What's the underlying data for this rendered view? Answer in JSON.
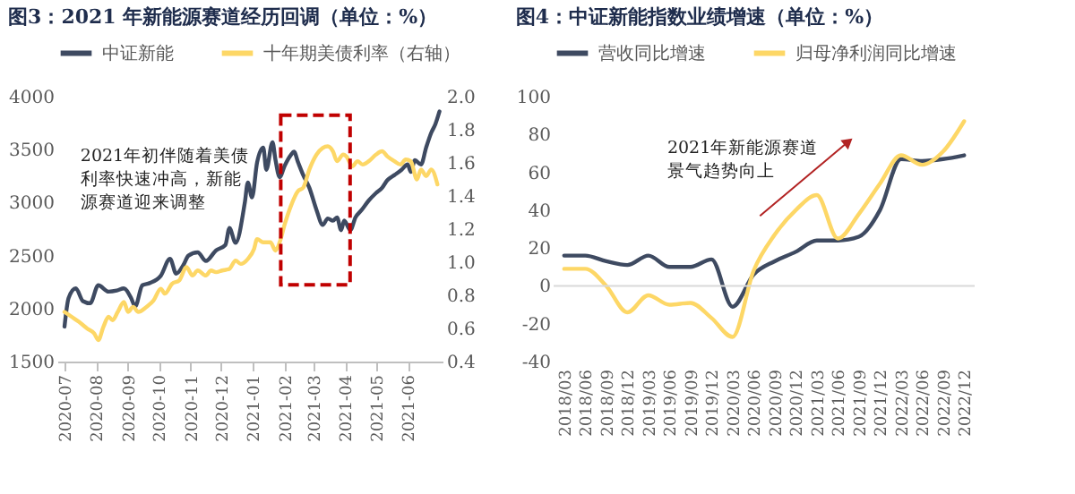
{
  "chart_data": [
    {
      "type": "line",
      "title": "图3：2021 年新能源赛道经历回调（单位：%）",
      "legend": "top",
      "xlim": [
        "2020-06-24",
        "2021-07-05"
      ],
      "xticks": [
        "2020-07",
        "2020-08",
        "2020-09",
        "2020-10",
        "2020-11",
        "2020-12",
        "2021-01",
        "2021-02",
        "2021-03",
        "2021-04",
        "2021-05",
        "2021-06"
      ],
      "ylim": [
        1500,
        4000
      ],
      "yticks": [
        1500,
        2000,
        2500,
        3000,
        3500,
        4000
      ],
      "y2lim": [
        0.4,
        2.0
      ],
      "y2ticks": [
        0.4,
        0.6,
        0.8,
        {
          "value": 1,
          "label": "1.0"
        },
        1.2,
        1.4,
        1.6,
        1.8,
        {
          "value": 2,
          "label": "2.0"
        }
      ],
      "annotations": [
        "2021年初伴随着美债利率快速冲高，新能源赛道迎来调整"
      ],
      "series": [
        {
          "name": "中证新能",
          "color": "#3e4a61",
          "x": [
            "2020-07-01",
            "2020-07-05",
            "2020-07-12",
            "2020-07-19",
            "2020-07-26",
            "2020-08-03",
            "2020-08-13",
            "2020-08-21",
            "2020-08-28",
            "2020-09-04",
            "2020-09-08",
            "2020-09-15",
            "2020-09-22",
            "2020-10-03",
            "2020-10-12",
            "2020-10-18",
            "2020-10-25",
            "2020-10-30",
            "2020-11-08",
            "2020-11-16",
            "2020-11-26",
            "2020-12-05",
            "2020-12-09",
            "2020-12-15",
            "2020-12-24",
            "2020-12-27",
            "2020-12-31",
            "2021-01-05",
            "2021-01-11",
            "2021-01-14",
            "2021-01-20",
            "2021-01-23",
            "2021-01-27",
            "2021-02-01",
            "2021-02-07",
            "2021-02-10",
            "2021-02-14",
            "2021-02-19",
            "2021-02-25",
            "2021-03-04",
            "2021-03-10",
            "2021-03-15",
            "2021-03-20",
            "2021-03-24",
            "2021-03-28",
            "2021-03-31",
            "2021-04-06",
            "2021-04-11",
            "2021-04-17",
            "2021-04-24",
            "2021-05-01",
            "2021-05-07",
            "2021-05-12",
            "2021-05-19",
            "2021-05-26",
            "2021-06-01",
            "2021-06-04",
            "2021-06-08",
            "2021-06-14",
            "2021-06-19",
            "2021-06-24",
            "2021-06-28",
            "2021-07-02"
          ],
          "values": [
            1830,
            2100,
            2190,
            2070,
            2050,
            2220,
            2160,
            2170,
            2190,
            2100,
            2020,
            2220,
            2240,
            2310,
            2470,
            2330,
            2410,
            2500,
            2530,
            2450,
            2550,
            2600,
            2760,
            2620,
            3000,
            3190,
            3050,
            3380,
            3520,
            3310,
            3570,
            3400,
            3240,
            3350,
            3450,
            3480,
            3380,
            3260,
            3140,
            2930,
            2790,
            2850,
            2830,
            2860,
            2740,
            2830,
            2740,
            2860,
            2930,
            3020,
            3090,
            3140,
            3210,
            3260,
            3310,
            3360,
            3290,
            3400,
            3360,
            3520,
            3660,
            3740,
            3860
          ]
        },
        {
          "name": "十年期美债利率（右轴）",
          "color": "#fdd766",
          "axis": "y2",
          "x": [
            "2020-07-01",
            "2020-07-08",
            "2020-07-15",
            "2020-07-23",
            "2020-07-30",
            "2020-08-03",
            "2020-08-08",
            "2020-08-13",
            "2020-08-17",
            "2020-08-22",
            "2020-08-28",
            "2020-09-01",
            "2020-09-06",
            "2020-09-11",
            "2020-09-19",
            "2020-09-26",
            "2020-10-03",
            "2020-10-07",
            "2020-10-14",
            "2020-10-21",
            "2020-10-28",
            "2020-11-03",
            "2020-11-08",
            "2020-11-16",
            "2020-11-21",
            "2020-11-26",
            "2020-12-02",
            "2020-12-09",
            "2020-12-15",
            "2020-12-20",
            "2020-12-27",
            "2021-01-02",
            "2021-01-05",
            "2021-01-11",
            "2021-01-18",
            "2021-01-23",
            "2021-01-27",
            "2021-02-01",
            "2021-02-07",
            "2021-02-14",
            "2021-02-19",
            "2021-02-25",
            "2021-03-04",
            "2021-03-10",
            "2021-03-15",
            "2021-03-20",
            "2021-03-24",
            "2021-03-30",
            "2021-04-02",
            "2021-04-08",
            "2021-04-13",
            "2021-04-18",
            "2021-04-24",
            "2021-05-01",
            "2021-05-07",
            "2021-05-12",
            "2021-05-19",
            "2021-05-25",
            "2021-05-30",
            "2021-06-04",
            "2021-06-10",
            "2021-06-14",
            "2021-06-19",
            "2021-06-24",
            "2021-06-30"
          ],
          "values": [
            0.7,
            0.67,
            0.64,
            0.6,
            0.57,
            0.53,
            0.61,
            0.67,
            0.65,
            0.7,
            0.76,
            0.7,
            0.73,
            0.7,
            0.73,
            0.77,
            0.84,
            0.81,
            0.87,
            0.89,
            0.97,
            0.92,
            0.95,
            0.92,
            0.95,
            0.94,
            0.95,
            0.96,
            1.01,
            0.99,
            1.02,
            1.08,
            1.14,
            1.12,
            1.12,
            1.07,
            1.12,
            1.23,
            1.34,
            1.43,
            1.45,
            1.56,
            1.65,
            1.69,
            1.7,
            1.67,
            1.61,
            1.65,
            1.64,
            1.58,
            1.61,
            1.59,
            1.61,
            1.65,
            1.67,
            1.64,
            1.61,
            1.59,
            1.62,
            1.61,
            1.5,
            1.56,
            1.52,
            1.56,
            1.47
          ]
        }
      ]
    },
    {
      "type": "line",
      "title": "图4：中证新能指数业绩增速（单位：%）",
      "legend": "top",
      "categories": [
        "2018/03",
        "2018/06",
        "2018/09",
        "2018/12",
        "2019/03",
        "2019/06",
        "2019/09",
        "2019/12",
        "2020/03",
        "2020/06",
        "2020/09",
        "2020/12",
        "2021/03",
        "2021/06",
        "2021/09",
        "2021/12",
        "2022/03",
        "2022/06",
        "2022/09",
        "2022/12"
      ],
      "ylim": [
        -40,
        100
      ],
      "yticks": [
        -40,
        -20,
        0,
        20,
        40,
        60,
        80,
        100
      ],
      "ref_lines": [
        {
          "axis": "y",
          "value": 0,
          "color": "#d9d9d9"
        }
      ],
      "annotations": [
        "2021年新能源赛道景气趋势向上"
      ],
      "series": [
        {
          "name": "营收同比增速",
          "color": "#3e4a61",
          "values": [
            16,
            16,
            13,
            11,
            16,
            10,
            10,
            14,
            -11,
            6,
            13,
            18,
            24,
            24,
            26,
            40,
            67,
            66,
            67,
            69
          ]
        },
        {
          "name": "归母净利润同比增速",
          "color": "#fdd766",
          "values": [
            9,
            9,
            0,
            -14,
            -5,
            -10,
            -9,
            -17,
            -27,
            8,
            27,
            40,
            48,
            25,
            38,
            54,
            69,
            64,
            71,
            87
          ]
        }
      ]
    }
  ]
}
